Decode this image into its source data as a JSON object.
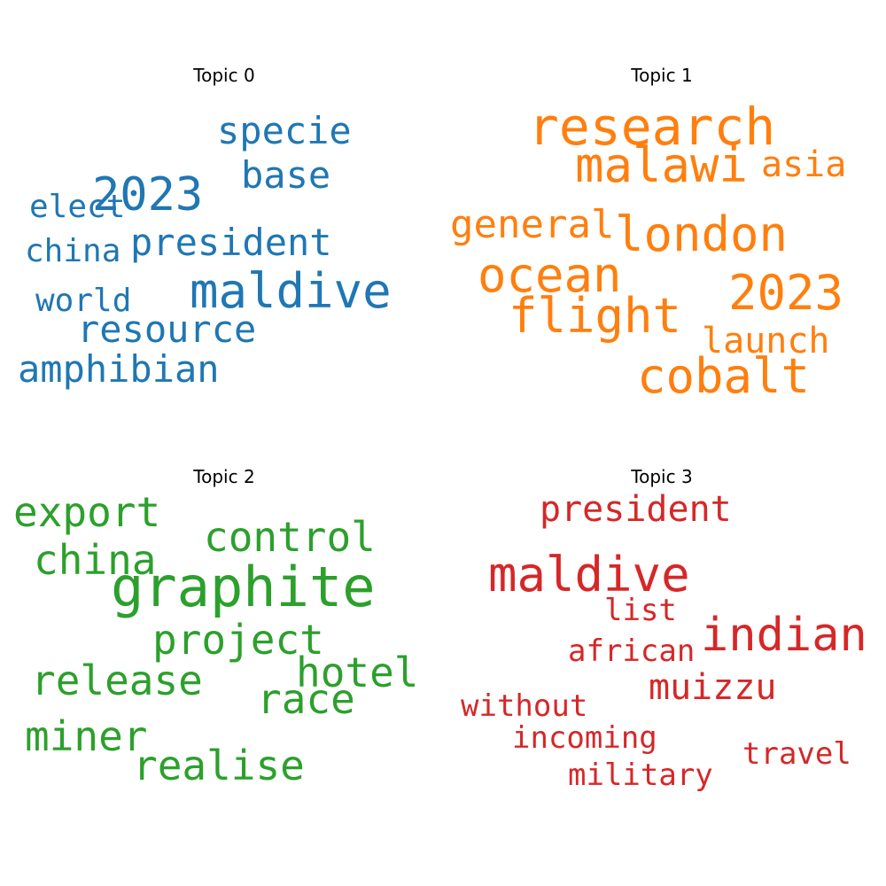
{
  "chart_data": [
    {
      "type": "wordcloud",
      "title": "Topic 0",
      "color": "#1f77b4",
      "words": [
        "2023",
        "maldive",
        "specie",
        "president",
        "base",
        "amphibian",
        "resource",
        "elect",
        "china",
        "world"
      ]
    },
    {
      "type": "wordcloud",
      "title": "Topic 1",
      "color": "#ff7f0e",
      "words": [
        "research",
        "malawi",
        "flight",
        "ocean",
        "london",
        "2023",
        "cobalt",
        "asia",
        "general",
        "launch"
      ]
    },
    {
      "type": "wordcloud",
      "title": "Topic 2",
      "color": "#2ca02c",
      "words": [
        "graphite",
        "export",
        "control",
        "china",
        "project",
        "hotel",
        "release",
        "race",
        "miner",
        "realise"
      ]
    },
    {
      "type": "wordcloud",
      "title": "Topic 3",
      "color": "#d62728",
      "words": [
        "maldive",
        "indian",
        "president",
        "muizzu",
        "list",
        "african",
        "without",
        "incoming",
        "military",
        "travel"
      ]
    }
  ]
}
